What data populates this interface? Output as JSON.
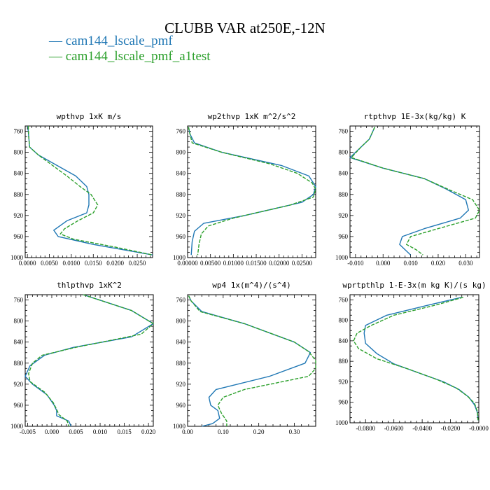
{
  "title": "CLUBB VAR at250E,-12N",
  "legend": [
    {
      "marker": "—",
      "label": "cam144_lscale_pmf",
      "color": "#1f77b4"
    },
    {
      "marker": "—",
      "label": "cam144_lscale_pmf_a1test",
      "color": "#2ca02c"
    }
  ],
  "chart_data": [
    {
      "type": "line",
      "title": "wpthvp  1xK m/s",
      "xlim": [
        -0.0005,
        0.0285
      ],
      "ylim": [
        1000,
        750
      ],
      "xticks": [
        0.0,
        0.005,
        0.01,
        0.015,
        0.02,
        0.025
      ],
      "xtick_labels": [
        "0.0000",
        "0.0050",
        "0.0100",
        "0.0150",
        "0.0200",
        "0.0250"
      ],
      "yticks": [
        760,
        800,
        840,
        880,
        920,
        960,
        1000
      ],
      "ytick_labels": [
        "760",
        "800",
        "840",
        "880",
        "920",
        "960",
        "1000"
      ],
      "series": [
        {
          "name": "cam144_lscale_pmf",
          "color": "#1f77b4",
          "dashed": false,
          "x": [
            0.0001,
            0.0003,
            0.0005,
            0.0025,
            0.011,
            0.0135,
            0.014,
            0.014,
            0.0135,
            0.009,
            0.006,
            0.007,
            0.015,
            0.0285
          ],
          "y": [
            750,
            770,
            790,
            805,
            845,
            865,
            880,
            900,
            915,
            930,
            948,
            960,
            975,
            995
          ]
        },
        {
          "name": "cam144_lscale_pmf_a1test",
          "color": "#2ca02c",
          "dashed": true,
          "x": [
            0.0002,
            0.0003,
            0.0005,
            0.0025,
            0.009,
            0.012,
            0.0145,
            0.016,
            0.015,
            0.0115,
            0.0085,
            0.0075,
            0.0105,
            0.02,
            0.0285
          ],
          "y": [
            750,
            770,
            790,
            805,
            845,
            865,
            880,
            900,
            915,
            930,
            945,
            955,
            965,
            980,
            995
          ]
        }
      ]
    },
    {
      "type": "line",
      "title": "wp2thvp  1xK m^2/s^2",
      "xlim": [
        0.0,
        0.028
      ],
      "ylim": [
        1000,
        750
      ],
      "xticks": [
        0.0,
        0.005,
        0.01,
        0.015,
        0.02,
        0.025
      ],
      "xtick_labels": [
        "0.00000",
        "0.00500",
        "0.01000",
        "0.01500",
        "0.02000",
        "0.02500"
      ],
      "yticks": [
        760,
        800,
        840,
        880,
        920,
        960,
        1000
      ],
      "ytick_labels": [
        "760",
        "800",
        "840",
        "880",
        "920",
        "960",
        "1000"
      ],
      "series": [
        {
          "name": "cam144_lscale_pmf",
          "color": "#1f77b4",
          "dashed": false,
          "x": [
            0.0002,
            0.0005,
            0.0015,
            0.0075,
            0.0205,
            0.0265,
            0.028,
            0.0275,
            0.025,
            0.0125,
            0.0035,
            0.0015,
            0.001,
            0.0008
          ],
          "y": [
            752,
            765,
            782,
            800,
            825,
            845,
            865,
            880,
            895,
            920,
            935,
            950,
            970,
            995
          ]
        },
        {
          "name": "cam144_lscale_pmf_a1test",
          "color": "#2ca02c",
          "dashed": true,
          "x": [
            0.0002,
            0.0005,
            0.001,
            0.0075,
            0.018,
            0.024,
            0.0272,
            0.028,
            0.0275,
            0.0225,
            0.01,
            0.0045,
            0.003,
            0.0025,
            0.0022
          ],
          "y": [
            752,
            765,
            782,
            800,
            822,
            840,
            858,
            870,
            885,
            900,
            925,
            940,
            955,
            975,
            995
          ]
        }
      ]
    },
    {
      "type": "line",
      "title": "rtpthvp  1E-3x(kg/kg) K",
      "xlim": [
        -0.012,
        0.035
      ],
      "ylim": [
        1000,
        750
      ],
      "xticks": [
        -0.01,
        0.0,
        0.01,
        0.02,
        0.03
      ],
      "xtick_labels": [
        "-0.010",
        "0.000",
        "0.010",
        "0.020",
        "0.030"
      ],
      "yticks": [
        760,
        800,
        840,
        880,
        920,
        960,
        1000
      ],
      "ytick_labels": [
        "760",
        "800",
        "840",
        "880",
        "920",
        "960",
        "1000"
      ],
      "series": [
        {
          "name": "cam144_lscale_pmf",
          "color": "#1f77b4",
          "dashed": false,
          "x": [
            -0.003,
            -0.005,
            -0.008,
            -0.012,
            0.0,
            0.015,
            0.023,
            0.03,
            0.031,
            0.028,
            0.015,
            0.007,
            0.006,
            0.008,
            0.01
          ],
          "y": [
            752,
            775,
            790,
            810,
            830,
            850,
            870,
            890,
            910,
            925,
            945,
            960,
            975,
            985,
            995
          ]
        },
        {
          "name": "cam144_lscale_pmf_a1test",
          "color": "#2ca02c",
          "dashed": true,
          "x": [
            -0.003,
            -0.005,
            -0.008,
            -0.0115,
            0.0,
            0.015,
            0.0235,
            0.0325,
            0.035,
            0.0335,
            0.02,
            0.01,
            0.0085,
            0.012,
            0.0145
          ],
          "y": [
            752,
            775,
            790,
            810,
            830,
            850,
            870,
            890,
            910,
            925,
            945,
            960,
            975,
            985,
            995
          ]
        }
      ]
    },
    {
      "type": "line",
      "title": "thlpthvp  1xK^2",
      "xlim": [
        -0.0055,
        0.021
      ],
      "ylim": [
        1000,
        750
      ],
      "xticks": [
        -0.005,
        0.0,
        0.005,
        0.01,
        0.015,
        0.02
      ],
      "xtick_labels": [
        "-0.005",
        "0.000",
        "0.005",
        "0.010",
        "0.015",
        "0.020"
      ],
      "yticks": [
        760,
        800,
        840,
        880,
        920,
        960,
        1000
      ],
      "ytick_labels": [
        "760",
        "800",
        "840",
        "880",
        "920",
        "960",
        "1000"
      ],
      "series": [
        {
          "name": "cam144_lscale_pmf",
          "color": "#1f77b4",
          "dashed": false,
          "x": [
            0.0065,
            0.0165,
            0.021,
            0.0165,
            0.0045,
            -0.0015,
            -0.0045,
            -0.0055,
            -0.004,
            -0.001,
            0.0005,
            0.001,
            0.001,
            0.0035,
            0.004
          ],
          "y": [
            750,
            780,
            805,
            830,
            850,
            865,
            885,
            905,
            920,
            940,
            960,
            970,
            980,
            990,
            1000
          ]
        },
        {
          "name": "cam144_lscale_pmf_a1test",
          "color": "#2ca02c",
          "dashed": true,
          "x": [
            0.0065,
            0.0165,
            0.021,
            0.0185,
            0.005,
            -0.002,
            -0.004,
            -0.0048,
            -0.0045,
            -0.0015,
            0.0003,
            0.001,
            0.0015,
            0.0032,
            0.0035
          ],
          "y": [
            750,
            780,
            805,
            825,
            850,
            865,
            880,
            900,
            915,
            935,
            955,
            968,
            978,
            990,
            1000
          ]
        }
      ]
    },
    {
      "type": "line",
      "title": "wp4  1x(m^4)/(s^4)",
      "xlim": [
        0.0,
        0.36
      ],
      "ylim": [
        1000,
        750
      ],
      "xticks": [
        0.0,
        0.1,
        0.2,
        0.3
      ],
      "xtick_labels": [
        "0.00",
        "0.10",
        "0.20",
        "0.30"
      ],
      "yticks": [
        760,
        800,
        840,
        880,
        920,
        960,
        1000
      ],
      "ytick_labels": [
        "760",
        "800",
        "840",
        "880",
        "920",
        "960",
        "1000"
      ],
      "series": [
        {
          "name": "cam144_lscale_pmf",
          "color": "#1f77b4",
          "dashed": false,
          "x": [
            0.003,
            0.01,
            0.04,
            0.16,
            0.3,
            0.345,
            0.33,
            0.23,
            0.08,
            0.06,
            0.065,
            0.085,
            0.09,
            0.07,
            0.04
          ],
          "y": [
            752,
            762,
            782,
            805,
            840,
            860,
            880,
            905,
            930,
            945,
            960,
            970,
            985,
            995,
            1000
          ]
        },
        {
          "name": "cam144_lscale_pmf_a1test",
          "color": "#2ca02c",
          "dashed": true,
          "x": [
            0.003,
            0.01,
            0.035,
            0.16,
            0.3,
            0.34,
            0.36,
            0.36,
            0.34,
            0.16,
            0.1,
            0.085,
            0.095,
            0.11,
            0.11
          ],
          "y": [
            752,
            762,
            782,
            805,
            840,
            858,
            875,
            890,
            905,
            930,
            945,
            960,
            975,
            990,
            1000
          ]
        }
      ]
    },
    {
      "type": "line",
      "title": "wprtpthlp  1-E-3x(m kg K)/(s kg)",
      "xlim": [
        -0.091,
        0.0
      ],
      "ylim": [
        1000,
        750
      ],
      "xticks": [
        -0.08,
        -0.06,
        -0.04,
        -0.02,
        0.0
      ],
      "xtick_labels": [
        "-0.0800",
        "-0.0600",
        "-0.0400",
        "-0.0200",
        "-0.0000"
      ],
      "yticks": [
        760,
        800,
        840,
        880,
        920,
        960,
        1000
      ],
      "ytick_labels": [
        "760",
        "800",
        "840",
        "880",
        "920",
        "960",
        "1000"
      ],
      "series": [
        {
          "name": "cam144_lscale_pmf",
          "color": "#1f77b4",
          "dashed": false,
          "x": [
            -0.012,
            -0.035,
            -0.065,
            -0.08,
            -0.081,
            -0.08,
            -0.072,
            -0.06,
            -0.04,
            -0.025,
            -0.014,
            -0.007,
            -0.003,
            -0.001,
            -0.0005
          ],
          "y": [
            755,
            770,
            790,
            810,
            825,
            845,
            865,
            885,
            905,
            920,
            935,
            950,
            965,
            980,
            995
          ]
        },
        {
          "name": "cam144_lscale_pmf_a1test",
          "color": "#2ca02c",
          "dashed": true,
          "x": [
            -0.011,
            -0.03,
            -0.06,
            -0.076,
            -0.086,
            -0.0885,
            -0.085,
            -0.072,
            -0.05,
            -0.03,
            -0.016,
            -0.008,
            -0.003,
            -0.001,
            -0.0005
          ],
          "y": [
            755,
            770,
            790,
            810,
            825,
            840,
            855,
            875,
            895,
            915,
            932,
            948,
            962,
            978,
            995
          ]
        }
      ]
    }
  ]
}
